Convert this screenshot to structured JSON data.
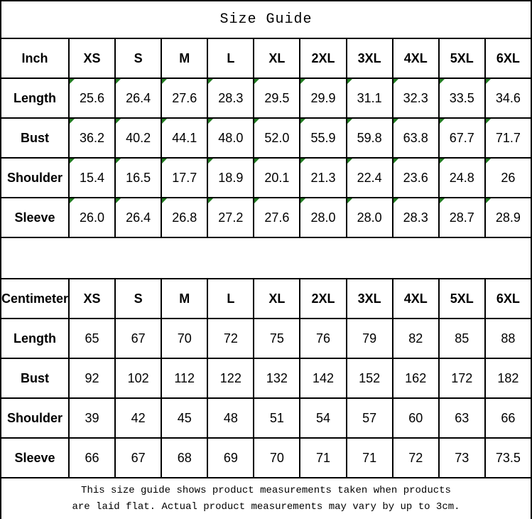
{
  "title": "Size Guide",
  "colors": {
    "background": "#ffffff",
    "text": "#000000",
    "border": "#000000",
    "flag_triangle_green": "#217c21"
  },
  "tables": {
    "inch": {
      "unit_label": "Inch",
      "sizes": [
        "XS",
        "S",
        "M",
        "L",
        "XL",
        "2XL",
        "3XL",
        "4XL",
        "5XL",
        "6XL"
      ],
      "has_flag_triangles": true,
      "rows": [
        {
          "label": "Length",
          "values": [
            "25.6",
            "26.4",
            "27.6",
            "28.3",
            "29.5",
            "29.9",
            "31.1",
            "32.3",
            "33.5",
            "34.6"
          ]
        },
        {
          "label": "Bust",
          "values": [
            "36.2",
            "40.2",
            "44.1",
            "48.0",
            "52.0",
            "55.9",
            "59.8",
            "63.8",
            "67.7",
            "71.7"
          ]
        },
        {
          "label": "Shoulder",
          "values": [
            "15.4",
            "16.5",
            "17.7",
            "18.9",
            "20.1",
            "21.3",
            "22.4",
            "23.6",
            "24.8",
            "26"
          ]
        },
        {
          "label": "Sleeve",
          "values": [
            "26.0",
            "26.4",
            "26.8",
            "27.2",
            "27.6",
            "28.0",
            "28.0",
            "28.3",
            "28.7",
            "28.9"
          ]
        }
      ]
    },
    "cm": {
      "unit_label": "Centimeter",
      "sizes": [
        "XS",
        "S",
        "M",
        "L",
        "XL",
        "2XL",
        "3XL",
        "4XL",
        "5XL",
        "6XL"
      ],
      "has_flag_triangles": false,
      "rows": [
        {
          "label": "Length",
          "values": [
            "65",
            "67",
            "70",
            "72",
            "75",
            "76",
            "79",
            "82",
            "85",
            "88"
          ]
        },
        {
          "label": "Bust",
          "values": [
            "92",
            "102",
            "112",
            "122",
            "132",
            "142",
            "152",
            "162",
            "172",
            "182"
          ]
        },
        {
          "label": "Shoulder",
          "values": [
            "39",
            "42",
            "45",
            "48",
            "51",
            "54",
            "57",
            "60",
            "63",
            "66"
          ]
        },
        {
          "label": "Sleeve",
          "values": [
            "66",
            "67",
            "68",
            "69",
            "70",
            "71",
            "71",
            "72",
            "73",
            "73.5"
          ]
        }
      ]
    }
  },
  "footer_note": {
    "line1": "This size guide shows product measurements taken when products",
    "line2": "are laid flat. Actual product measurements may vary by up to 3cm."
  }
}
